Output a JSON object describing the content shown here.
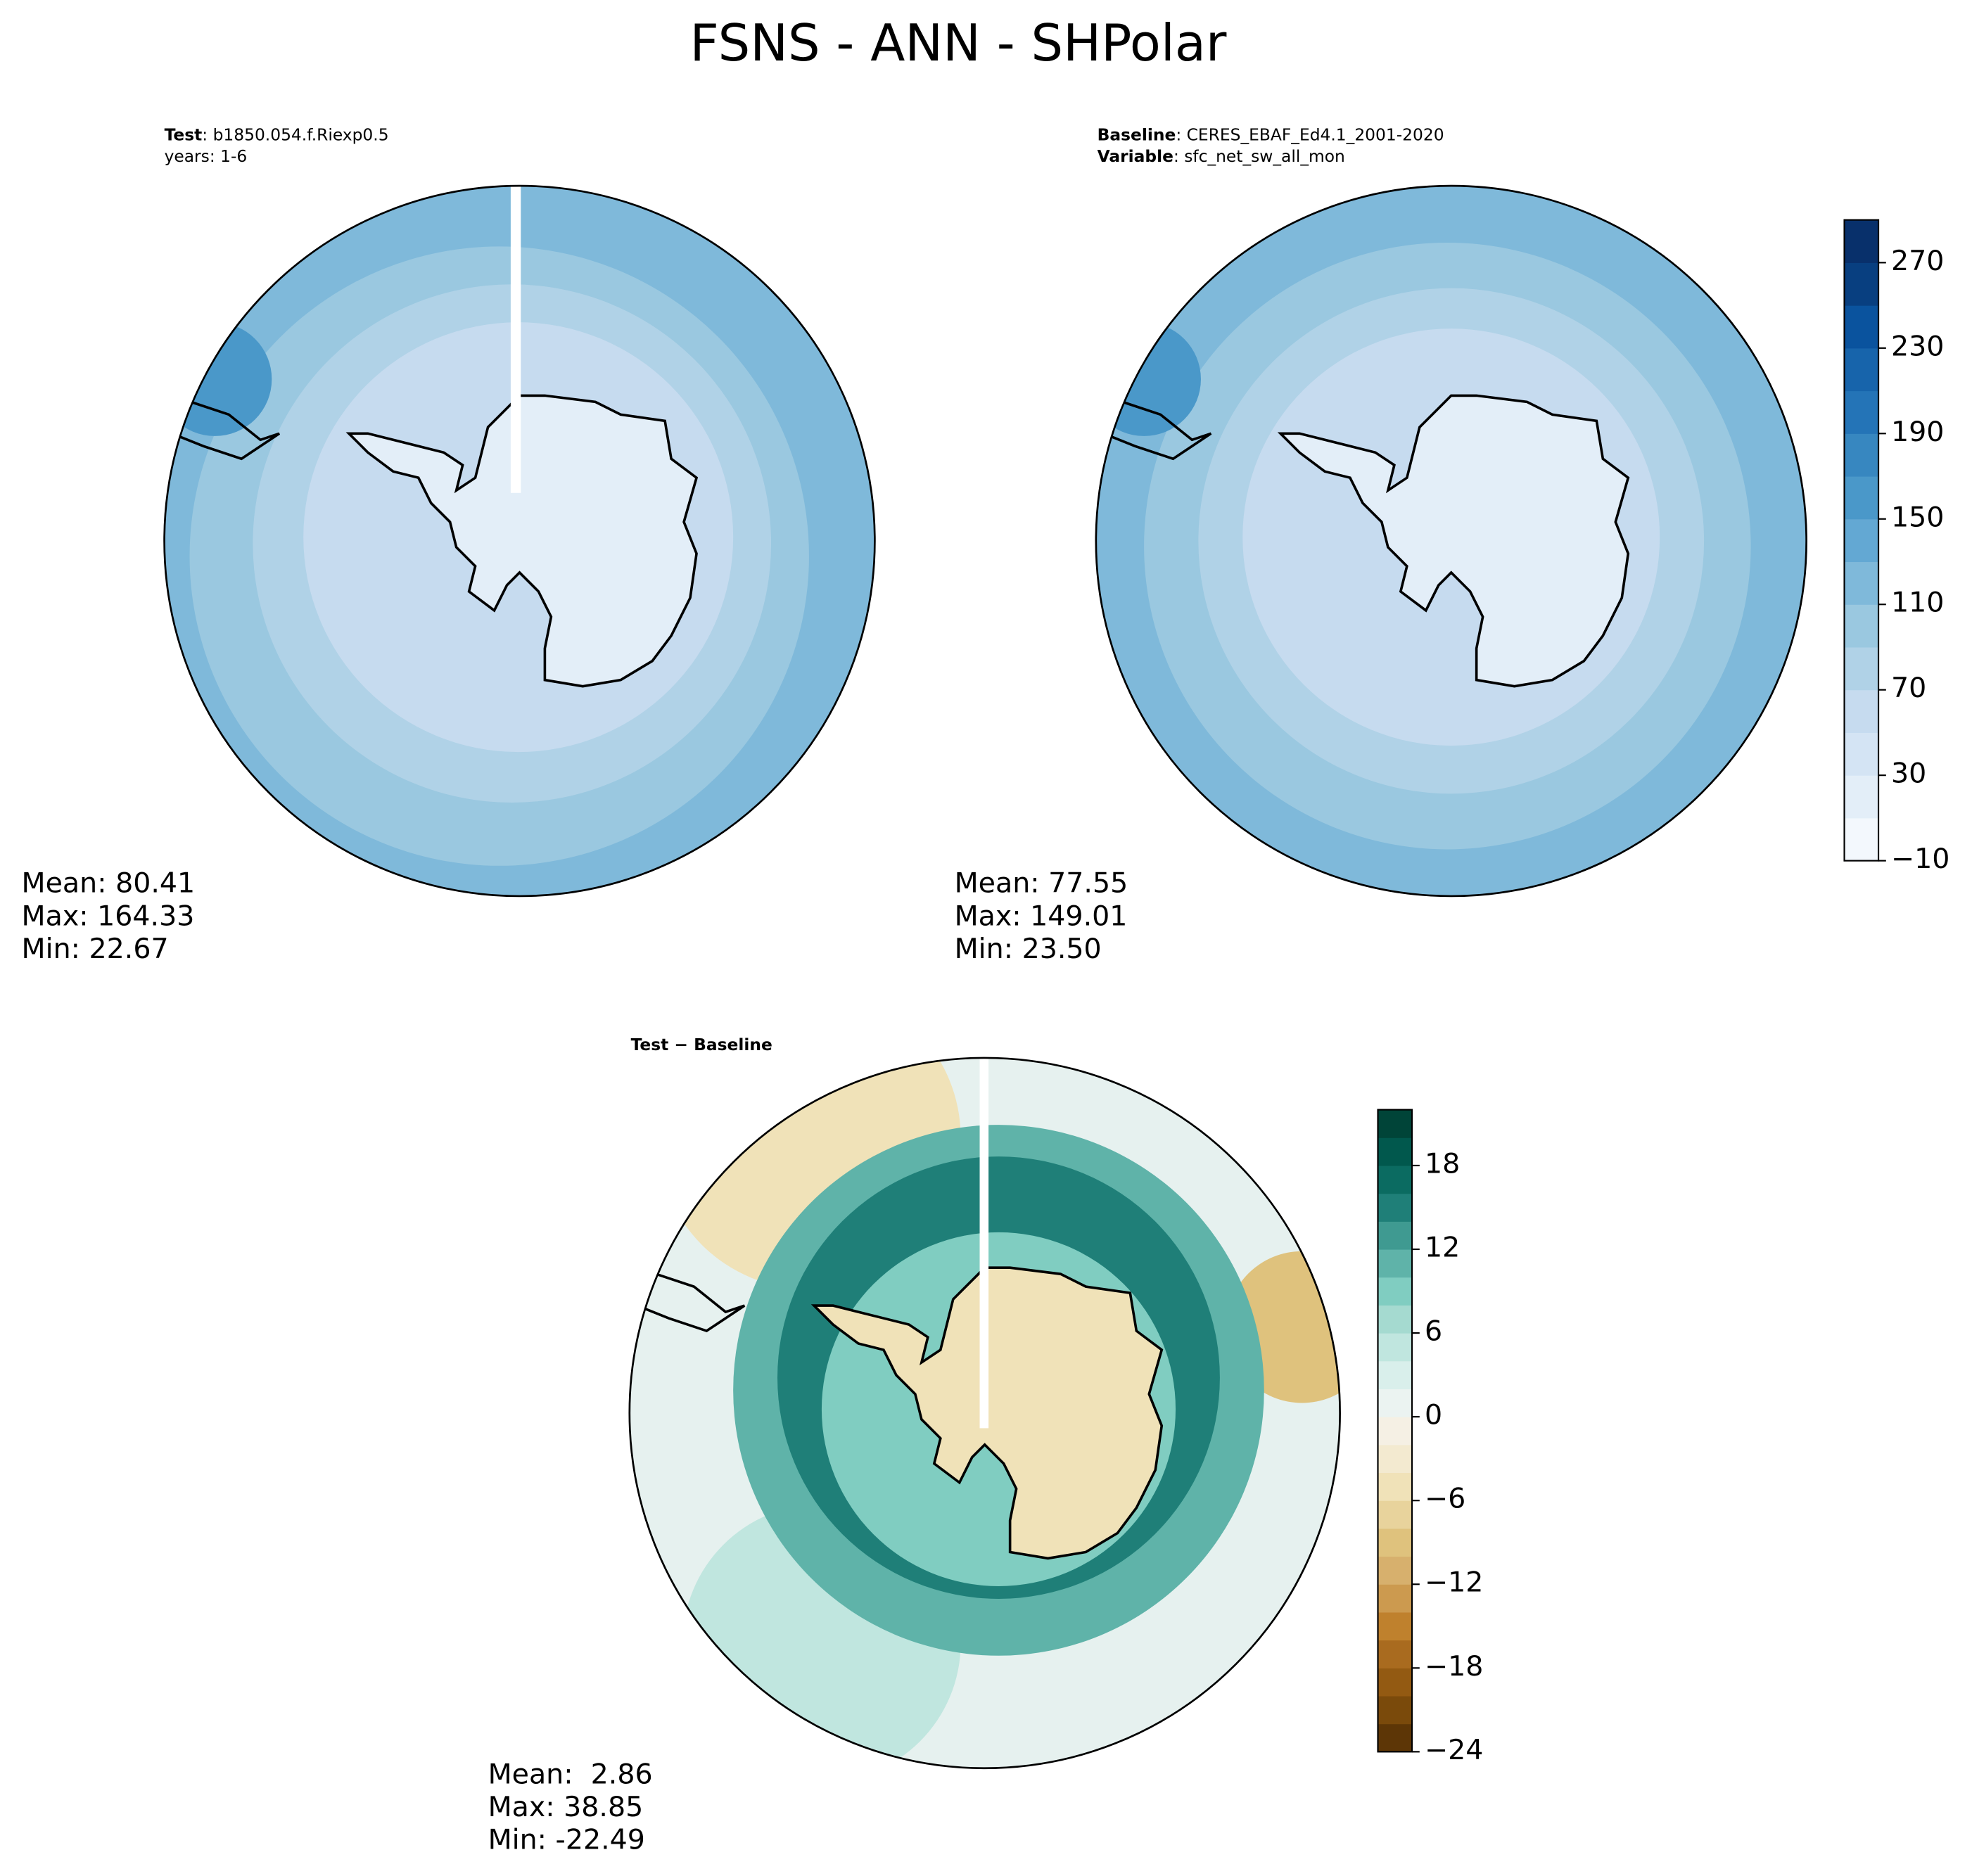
{
  "title": "FSNS - ANN - SHPolar",
  "panels": [
    {
      "label_lines": [
        {
          "bold": "Test",
          "text": ": b1850.054.f.Riexp0.5"
        },
        {
          "text": "years: 1-6"
        }
      ],
      "stats": [
        "Mean: 80.41",
        "Max: 164.33",
        "Min: 22.67"
      ]
    },
    {
      "label_lines": [
        {
          "bold": "Baseline",
          "text": ": CERES_EBAF_Ed4.1_2001-2020"
        },
        {
          "bold": "Variable",
          "text": ": sfc_net_sw_all_mon"
        }
      ],
      "stats": [
        "Mean: 77.55",
        "Max: 149.01",
        "Min: 23.50"
      ]
    },
    {
      "label_lines": [
        {
          "bold": "Test − Baseline"
        }
      ],
      "stats": [
        "Mean:  2.86",
        "Max: 38.85",
        "Min: -22.49"
      ]
    }
  ],
  "colorbars": [
    {
      "lim": [
        -10,
        290
      ],
      "ticks": [
        {
          "value": -10,
          "label": "−10"
        },
        30,
        70,
        110,
        150,
        190,
        230,
        270
      ],
      "colors": [
        "#f3f8fd",
        "#e3eef8",
        "#d4e4f4",
        "#c6dbef",
        "#b0d2e7",
        "#9ac8e0",
        "#7fb9da",
        "#63a8d3",
        "#4a98c9",
        "#3787c0",
        "#2474b7",
        "#1764ab",
        "#0a539e",
        "#083f80",
        "#08306b"
      ]
    },
    {
      "lim": [
        -24,
        22
      ],
      "ticks": [
        {
          "value": -24,
          "label": "−24"
        },
        {
          "value": -18,
          "label": "−18"
        },
        {
          "value": -12,
          "label": "−12"
        },
        {
          "value": -6,
          "label": "−6"
        },
        0,
        6,
        12,
        18
      ],
      "colors": [
        "#5d3606",
        "#7a4a0b",
        "#935a12",
        "#a96b1f",
        "#bf812d",
        "#cc9a4f",
        "#d7b06d",
        "#dfc27d",
        "#e8d39c",
        "#f0e2b8",
        "#f3ead0",
        "#f5f0e4",
        "#ebf3f1",
        "#d9efeb",
        "#c0e6df",
        "#a5dad0",
        "#80cdc1",
        "#5fb3a9",
        "#3f9a91",
        "#1f7f78",
        "#0b6b61",
        "#01584d",
        "#004438"
      ]
    }
  ]
}
